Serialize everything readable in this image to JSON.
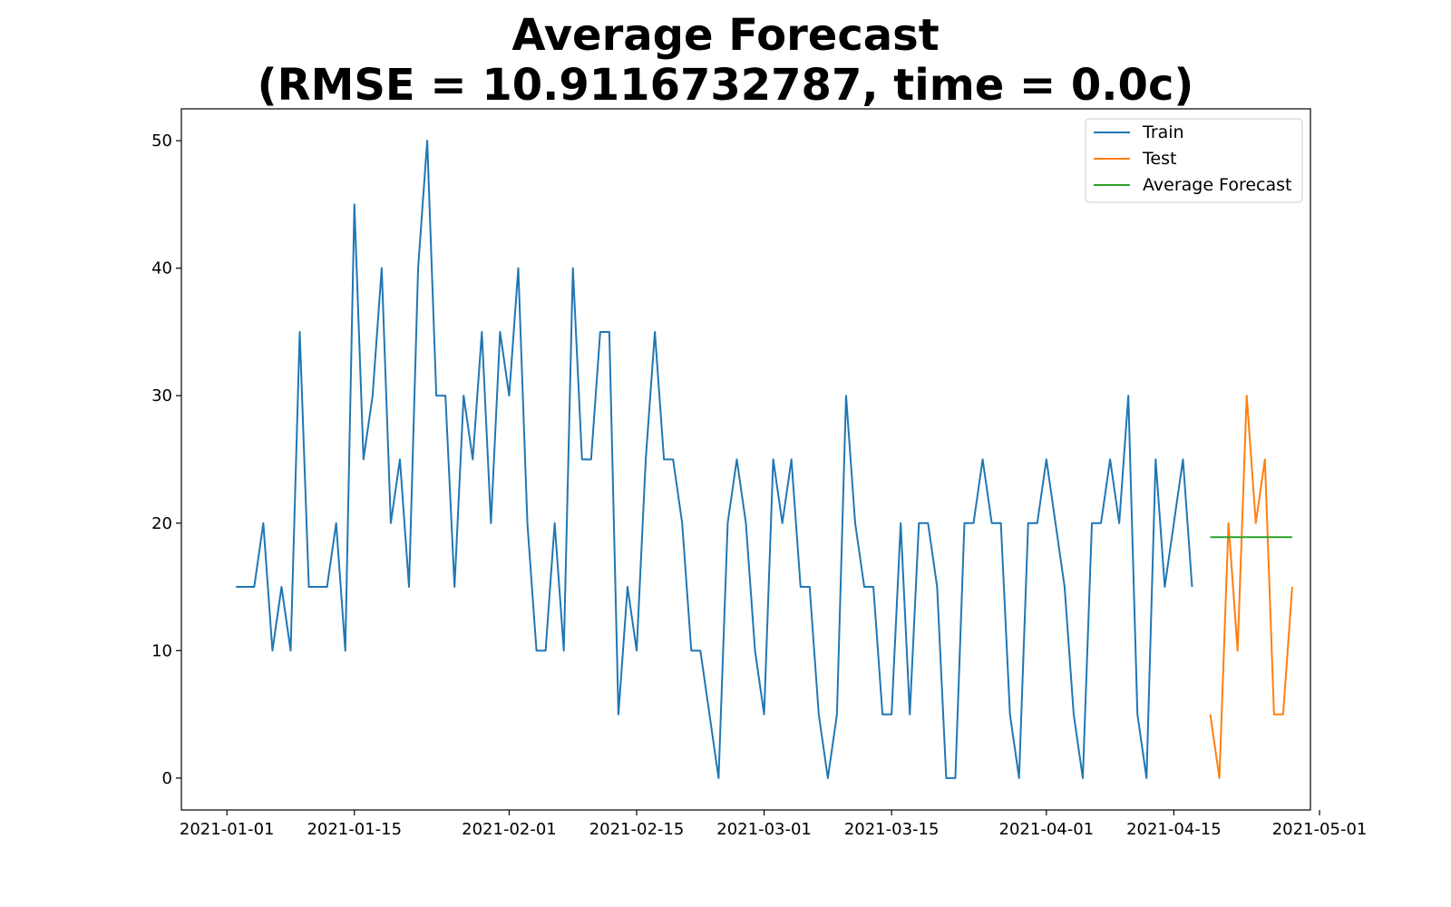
{
  "chart_data": {
    "type": "line",
    "title_line1": "Average Forecast",
    "title_line2": "(RMSE = 10.9116732787, time = 0.0c)",
    "xlabel": "",
    "ylabel": "",
    "x_type": "date",
    "xlim": [
      "2020-12-27",
      "2021-04-30"
    ],
    "ylim": [
      -2.5,
      52.5
    ],
    "x_ticks": [
      "2021-01-01",
      "2021-01-15",
      "2021-02-01",
      "2021-02-15",
      "2021-03-01",
      "2021-03-15",
      "2021-04-01",
      "2021-04-15",
      "2021-05-01"
    ],
    "y_ticks": [
      "0",
      "10",
      "20",
      "30",
      "40",
      "50"
    ],
    "grid": false,
    "legend_position": "top-right",
    "series": [
      {
        "name": "Train",
        "color": "#1f77b4",
        "start_date": "2021-01-02",
        "values": [
          15,
          15,
          15,
          20,
          10,
          15,
          10,
          35,
          15,
          15,
          15,
          20,
          10,
          45,
          25,
          30,
          40,
          20,
          25,
          15,
          40,
          50,
          30,
          30,
          15,
          30,
          25,
          35,
          20,
          35,
          30,
          40,
          20,
          10,
          10,
          20,
          10,
          40,
          25,
          25,
          35,
          35,
          5,
          15,
          10,
          25,
          35,
          25,
          25,
          20,
          10,
          10,
          5,
          0,
          20,
          25,
          20,
          10,
          5,
          25,
          20,
          25,
          15,
          15,
          5,
          0,
          5,
          30,
          20,
          15,
          15,
          5,
          5,
          20,
          5,
          20,
          20,
          15,
          0,
          0,
          20,
          20,
          25,
          20,
          20,
          5,
          0,
          20,
          20,
          25,
          20,
          15,
          5,
          0,
          20,
          20,
          25,
          20,
          30,
          5,
          0,
          25,
          15,
          20,
          25,
          15
        ]
      },
      {
        "name": "Test",
        "color": "#ff7f0e",
        "start_date": "2021-04-19",
        "values": [
          5,
          0,
          20,
          10,
          30,
          20,
          25,
          5,
          5,
          15
        ]
      },
      {
        "name": "Average Forecast",
        "color": "#2ca02c",
        "start_date": "2021-04-19",
        "values": [
          18.9,
          18.9,
          18.9,
          18.9,
          18.9,
          18.9,
          18.9,
          18.9,
          18.9,
          18.9
        ]
      }
    ]
  }
}
